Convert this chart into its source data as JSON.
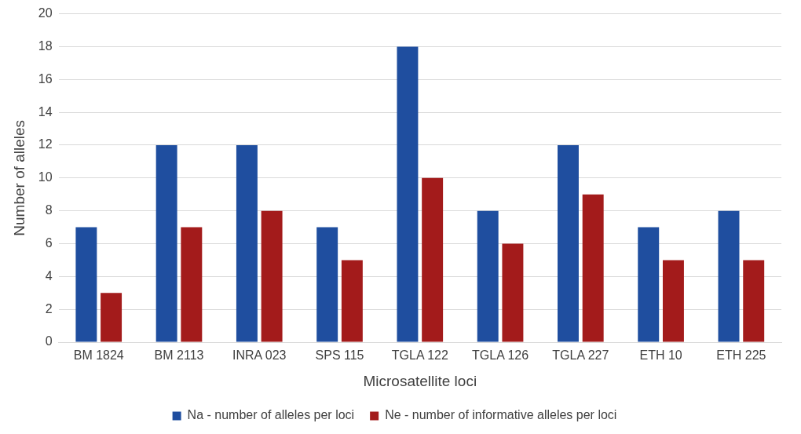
{
  "chart_data": {
    "type": "bar",
    "xlabel": "Microsatellite loci",
    "ylabel": "Number of alleles",
    "categories": [
      "BM 1824",
      "BM 2113",
      "INRA 023",
      "SPS 115",
      "TGLA 122",
      "TGLA 126",
      "TGLA 227",
      "ETH 10",
      "ETH 225"
    ],
    "series": [
      {
        "name": "Na - number of alleles per loci",
        "color": "#1f4e9f",
        "values": [
          7,
          12,
          12,
          7,
          18,
          8,
          12,
          7,
          8
        ]
      },
      {
        "name": "Ne - number of informative alleles per loci",
        "color": "#a31b1b",
        "values": [
          3,
          7,
          8,
          5,
          10,
          6,
          9,
          5,
          5
        ]
      }
    ],
    "ylim": [
      0,
      20
    ],
    "yticks": [
      0,
      2,
      4,
      6,
      8,
      10,
      12,
      14,
      16,
      18,
      20
    ],
    "grid": "y",
    "legend": "bottom"
  }
}
